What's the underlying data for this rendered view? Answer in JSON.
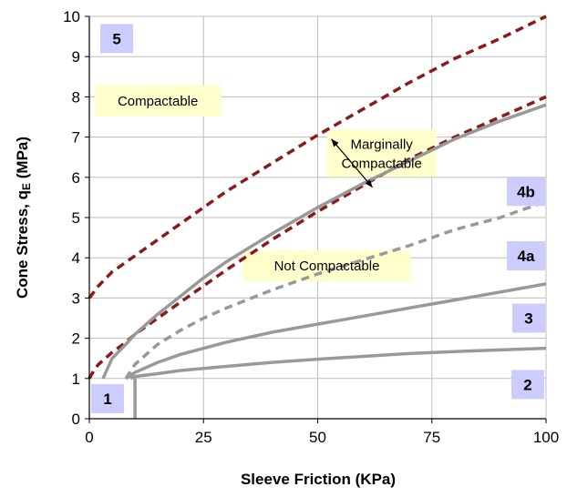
{
  "chart_data": {
    "type": "line",
    "title": "",
    "xlabel": "Sleeve Friction  (KPa)",
    "ylabel_main": "Cone Stress, q",
    "ylabel_sub": "E",
    "ylabel_unit": "  (MPa)",
    "xlim": [
      0,
      100
    ],
    "ylim": [
      0,
      10
    ],
    "xticks": [
      "0",
      "25",
      "50",
      "75",
      "100"
    ],
    "yticks": [
      "0",
      "1",
      "2",
      "3",
      "4",
      "5",
      "6",
      "7",
      "8",
      "9",
      "10"
    ],
    "grid": true,
    "series": [
      {
        "style": "dashed",
        "color": "#8b1a1a",
        "x": [
          0,
          2,
          5,
          10,
          20,
          30,
          40,
          50,
          60,
          70,
          80,
          90,
          100
        ],
        "y": [
          3.0,
          3.3,
          3.65,
          4.05,
          4.85,
          5.65,
          6.35,
          7.05,
          7.7,
          8.35,
          8.95,
          9.45,
          10.0
        ]
      },
      {
        "style": "dashed",
        "color": "#8b1a1a",
        "x": [
          0,
          1,
          2,
          3,
          5,
          8,
          10,
          15,
          20,
          25,
          30,
          40,
          50,
          60,
          70,
          80,
          90,
          100
        ],
        "y": [
          1.0,
          1.2,
          1.35,
          1.45,
          1.65,
          1.9,
          2.1,
          2.5,
          2.9,
          3.3,
          3.7,
          4.45,
          5.15,
          5.8,
          6.45,
          7.0,
          7.5,
          8.0
        ]
      },
      {
        "style": "solid",
        "color": "#999999",
        "x": [
          3,
          5,
          8,
          10,
          15,
          20,
          25,
          30,
          40,
          50,
          60,
          70,
          80,
          90,
          100
        ],
        "y": [
          1.0,
          1.5,
          1.85,
          2.1,
          2.6,
          3.05,
          3.5,
          3.9,
          4.6,
          5.25,
          5.85,
          6.4,
          6.95,
          7.4,
          7.8
        ]
      },
      {
        "style": "dashed",
        "color": "#999999",
        "x": [
          8,
          10,
          15,
          20,
          25,
          30,
          40,
          50,
          60,
          70,
          80,
          90,
          100
        ],
        "y": [
          1.0,
          1.35,
          1.85,
          2.2,
          2.5,
          2.75,
          3.2,
          3.6,
          3.95,
          4.3,
          4.7,
          5.0,
          5.4
        ]
      },
      {
        "style": "solid",
        "color": "#999999",
        "x": [
          8,
          10,
          15,
          20,
          30,
          40,
          50,
          60,
          70,
          80,
          90,
          100
        ],
        "y": [
          1.0,
          1.15,
          1.4,
          1.6,
          1.9,
          2.15,
          2.35,
          2.55,
          2.75,
          2.95,
          3.15,
          3.35
        ]
      },
      {
        "style": "solid",
        "color": "#999999",
        "x": [
          9,
          10,
          15,
          20,
          30,
          40,
          50,
          60,
          70,
          80,
          90,
          100
        ],
        "y": [
          1.0,
          1.05,
          1.12,
          1.2,
          1.3,
          1.4,
          1.48,
          1.55,
          1.62,
          1.67,
          1.71,
          1.75
        ]
      },
      {
        "style": "solid",
        "color": "#999999",
        "x": [
          10,
          10
        ],
        "y": [
          0,
          1.0
        ]
      }
    ],
    "annotations": [
      {
        "text": "Compactable",
        "x": 15,
        "y": 7.9
      },
      {
        "text": "Not  Compactable",
        "x": 52,
        "y": 3.8
      },
      {
        "lines": [
          "Marginally",
          "Compactable"
        ],
        "x": 64,
        "y": 6.6
      },
      {
        "type": "arrow",
        "from": [
          53,
          6.95
        ],
        "to": [
          62,
          5.75
        ]
      }
    ],
    "zone_labels": [
      {
        "text": "5",
        "x": 6,
        "y": 9.45
      },
      {
        "text": "4b",
        "x": 97,
        "y": 5.65
      },
      {
        "text": "4a",
        "x": 97,
        "y": 4.05
      },
      {
        "text": "3",
        "x": 97,
        "y": 2.5
      },
      {
        "text": "2",
        "x": 96,
        "y": 0.85
      },
      {
        "text": "1",
        "x": 4,
        "y": 0.5
      }
    ]
  }
}
